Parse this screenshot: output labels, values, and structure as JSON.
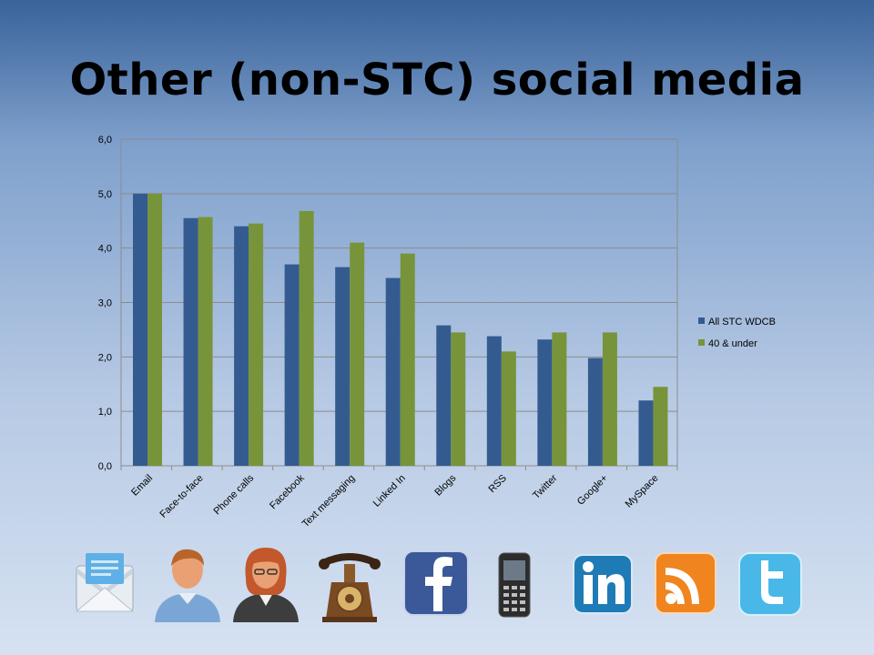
{
  "slide": {
    "title": "Other (non-STC) social media"
  },
  "colors": {
    "series1": "#345b90",
    "series2": "#77943b",
    "grid": "#8c8c8c"
  },
  "chart_data": {
    "type": "bar",
    "categories": [
      "Email",
      "Face-to-face",
      "Phone calls",
      "Facebook",
      "Text messaging",
      "Linked In",
      "Blogs",
      "RSS",
      "Twitter",
      "Google+",
      "MySpace"
    ],
    "series": [
      {
        "name": "All STC WDCB",
        "values": [
          5.0,
          4.55,
          4.4,
          3.7,
          3.65,
          3.45,
          2.58,
          2.38,
          2.32,
          1.98,
          1.2
        ]
      },
      {
        "name": "40 & under",
        "values": [
          5.0,
          4.57,
          4.45,
          4.68,
          4.1,
          3.9,
          2.45,
          2.1,
          2.45,
          2.45,
          1.45
        ]
      }
    ],
    "yticks": [
      "0,0",
      "1,0",
      "2,0",
      "3,0",
      "4,0",
      "5,0",
      "6,0"
    ],
    "ylim": [
      0,
      6
    ],
    "legend": "right",
    "grid": true
  },
  "icons": [
    "email-icon",
    "man-avatar-icon",
    "woman-avatar-icon",
    "telephone-icon",
    "facebook-icon",
    "mobile-phone-icon",
    "linkedin-icon",
    "rss-icon",
    "twitter-icon"
  ]
}
